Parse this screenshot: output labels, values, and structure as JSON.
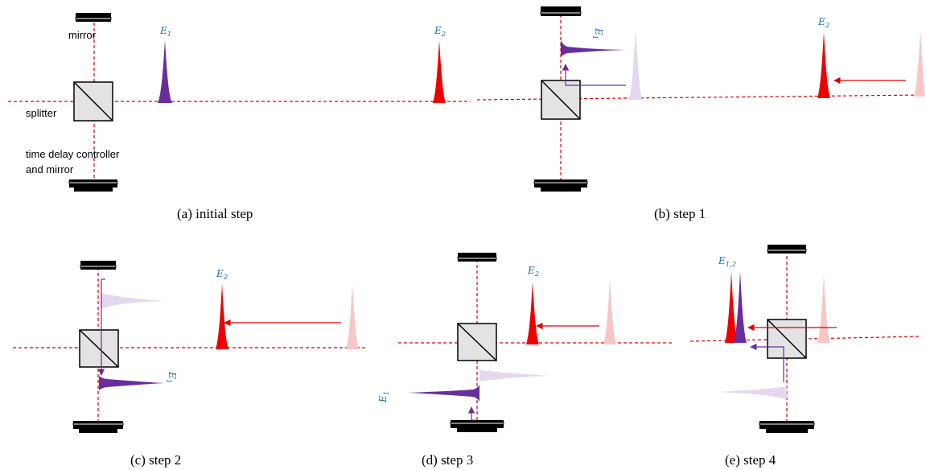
{
  "colors": {
    "beam": "#e00000",
    "e1_pulse": "#6a2d9c",
    "e2_pulse": "#ee0000",
    "faded_e1": "#e4d8ee",
    "faded_e2": "#f7c6c6",
    "e_label": "#1a6fb3",
    "splitter_fill": "#e3e3e3"
  },
  "labels": {
    "mirror": "mirror",
    "splitter": "splitter",
    "delay_line1": "time delay controller",
    "delay_line2": "and mirror"
  },
  "pulses": {
    "e1_base": "E",
    "e1_sub": "1",
    "e2_base": "E",
    "e2_sub": "2",
    "e12_sub": "1,2"
  },
  "captions": {
    "a": "(a)  initial step",
    "b": "(b)  step 1",
    "c": "(c)  step 2",
    "d": "(d)  step 3",
    "e": "(e)  step 4"
  }
}
